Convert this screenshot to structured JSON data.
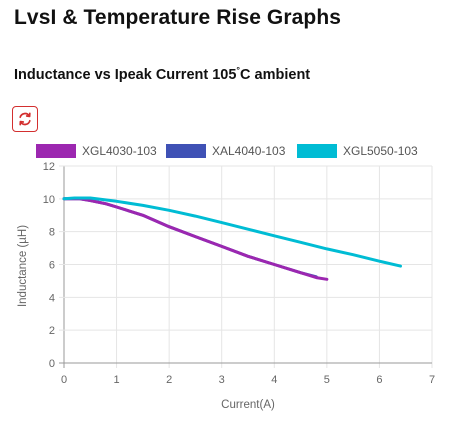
{
  "page": {
    "title": "LvsI & Temperature Rise Graphs",
    "chart_title": "Inductance vs Ipeak Current 105",
    "chart_title_degree": "°",
    "chart_title_suffix": "C ambient",
    "reset_icon": "refresh-icon",
    "reset_color": "#d32f2f"
  },
  "chart_data": {
    "type": "line",
    "title": "Inductance vs Ipeak Current 105°C ambient",
    "xlabel": "Current(A)",
    "ylabel": "Inductance (µH)",
    "xlim": [
      0,
      7
    ],
    "ylim": [
      0,
      12
    ],
    "xticks": [
      0,
      1,
      2,
      3,
      4,
      5,
      6,
      7
    ],
    "yticks": [
      0,
      2,
      4,
      6,
      8,
      10,
      12
    ],
    "grid": true,
    "legend_position": "top",
    "series": [
      {
        "name": "XGL4030-103",
        "color": "#9c27b0",
        "x": [
          0,
          0.3,
          0.5,
          0.8,
          1.0,
          1.5,
          2.0,
          2.5,
          3.0,
          3.5,
          4.0,
          4.5,
          4.8,
          5.0
        ],
        "y": [
          10.0,
          10.0,
          9.9,
          9.7,
          9.5,
          9.0,
          8.3,
          7.7,
          7.1,
          6.5,
          6.0,
          5.5,
          5.2,
          5.1
        ]
      },
      {
        "name": "XAL4040-103",
        "color": "#3f51b5",
        "x": [
          0,
          0.3,
          0.5,
          0.8,
          1.0,
          1.5,
          2.0,
          2.5,
          3.0,
          3.5,
          4.0,
          4.5,
          4.8
        ],
        "y": [
          10.0,
          10.0,
          9.9,
          9.7,
          9.5,
          9.0,
          8.3,
          7.7,
          7.1,
          6.5,
          6.0,
          5.5,
          5.25
        ]
      },
      {
        "name": "XGL5050-103",
        "color": "#00bcd4",
        "x": [
          0,
          0.2,
          0.5,
          1.0,
          1.5,
          2.0,
          2.5,
          3.0,
          3.5,
          4.0,
          4.5,
          5.0,
          5.5,
          6.0,
          6.4
        ],
        "y": [
          10.0,
          10.05,
          10.05,
          9.85,
          9.6,
          9.3,
          8.95,
          8.55,
          8.15,
          7.75,
          7.35,
          6.95,
          6.6,
          6.2,
          5.9
        ]
      }
    ]
  }
}
